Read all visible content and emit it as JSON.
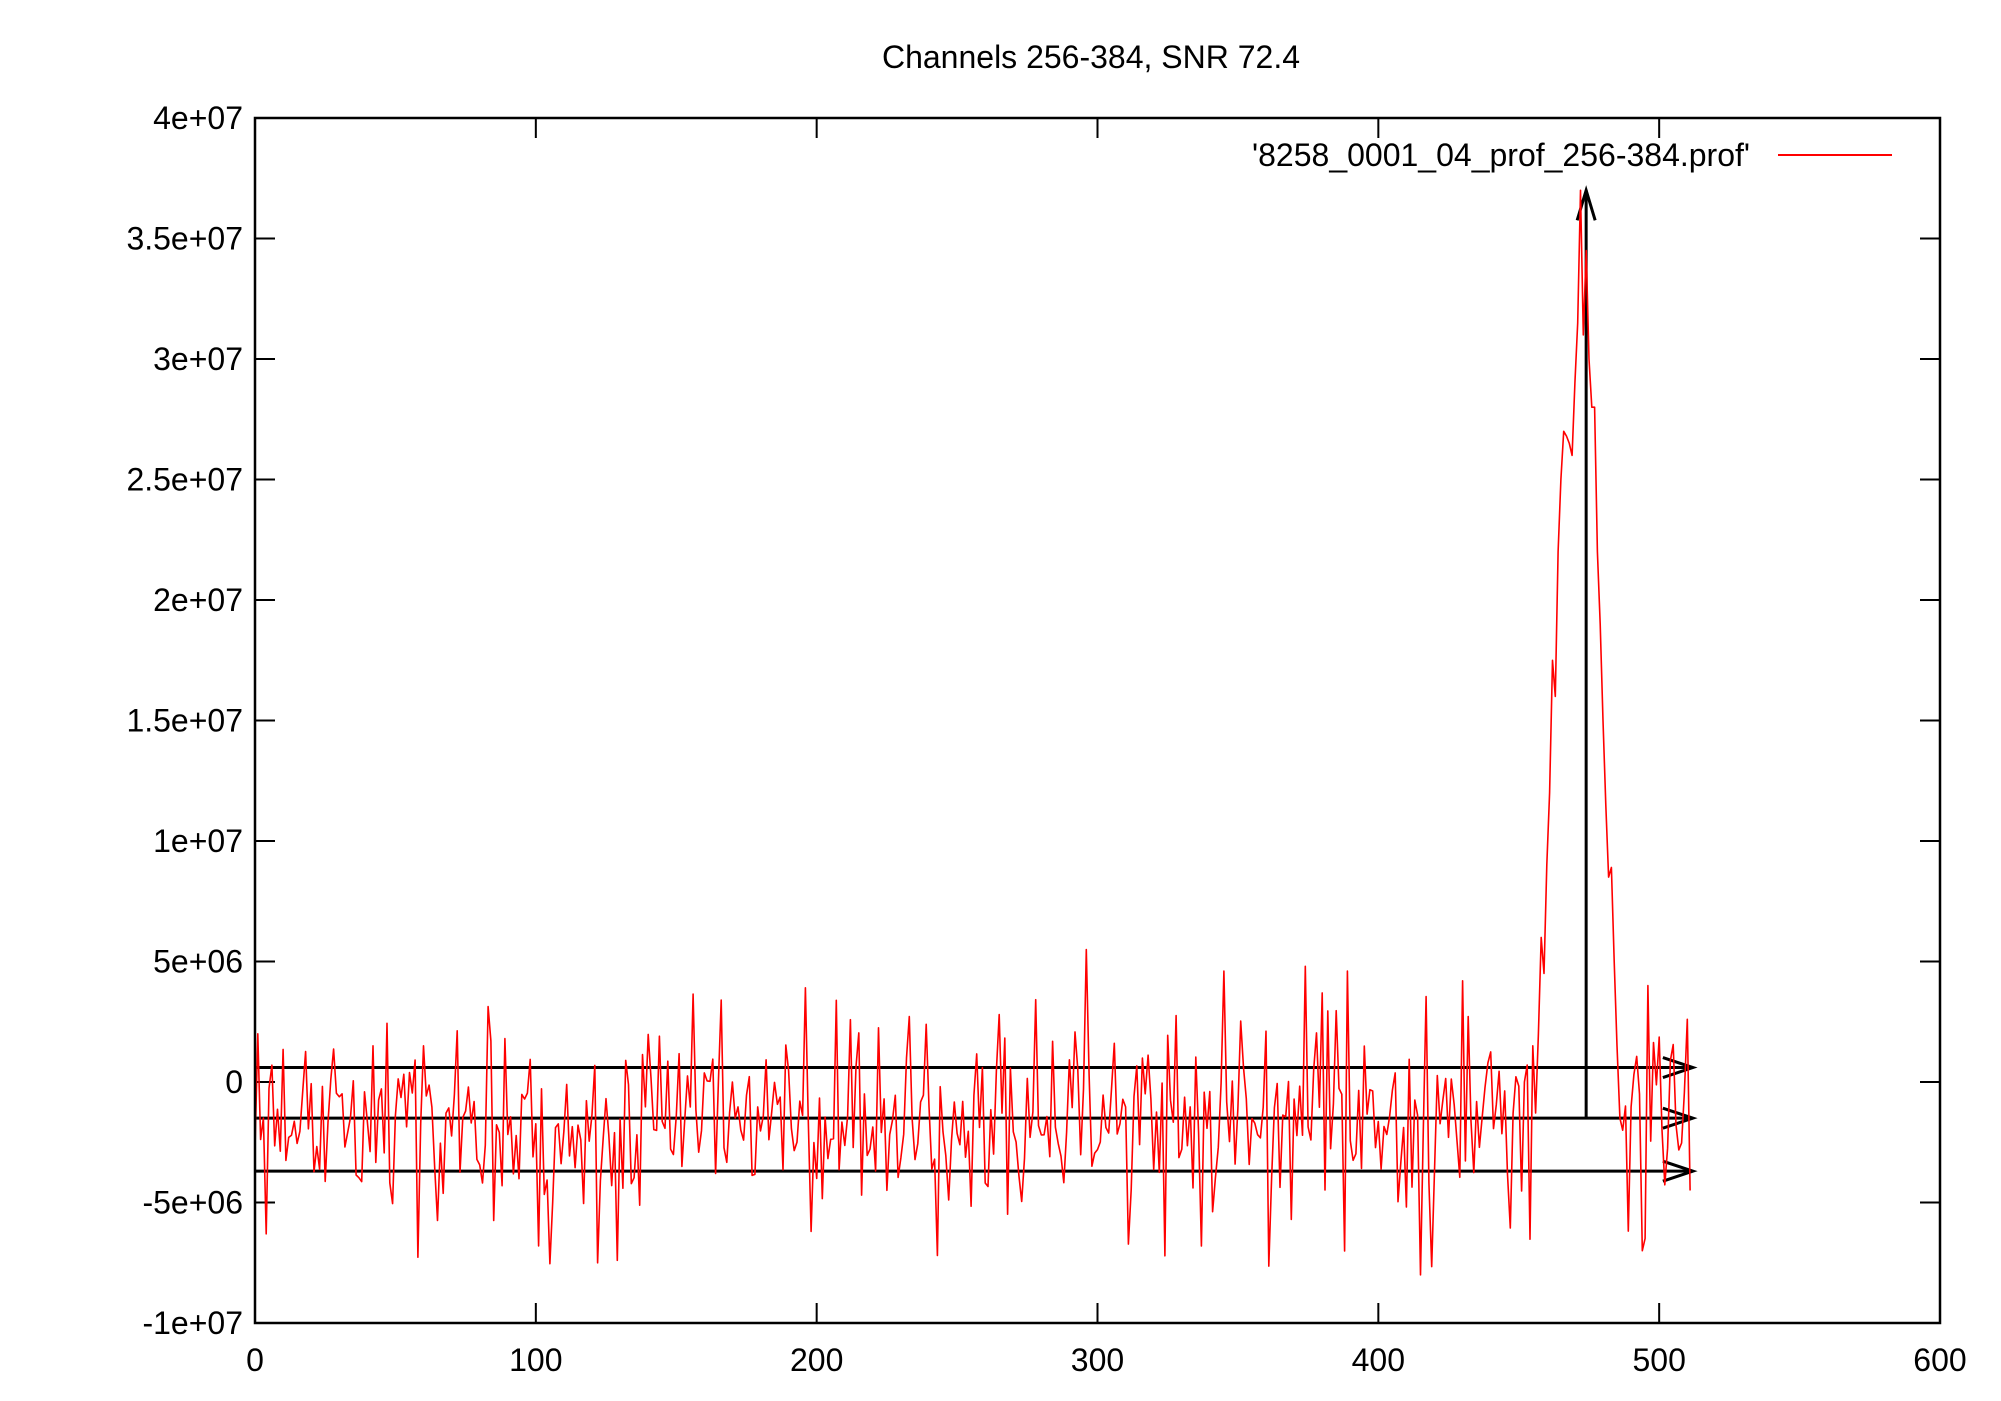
{
  "chart_data": {
    "type": "line",
    "title": "Channels 256-384, SNR 72.4",
    "xlabel": "",
    "ylabel": "",
    "xlim": [
      0,
      600
    ],
    "ylim": [
      -10000000,
      40000000
    ],
    "x_ticks": [
      0,
      100,
      200,
      300,
      400,
      500,
      600
    ],
    "x_tick_labels": [
      "0",
      "100",
      "200",
      "300",
      "400",
      "500",
      "600"
    ],
    "y_ticks": [
      -10000000,
      -5000000,
      0,
      5000000,
      10000000,
      15000000,
      20000000,
      25000000,
      30000000,
      35000000,
      40000000
    ],
    "y_tick_labels": [
      "-1e+07",
      "-5e+06",
      "0",
      "5e+06",
      "1e+07",
      "1.5e+07",
      "2e+07",
      "2.5e+07",
      "3e+07",
      "3.5e+07",
      "4e+07"
    ],
    "grid": false,
    "legend": "top-right",
    "series": [
      {
        "name": "'8258_0001_04_prof_256-384.prof'",
        "color": "#ff0000",
        "n_points": 512,
        "baseline_mean": -1500000,
        "noise_sigma": 2100000,
        "noise_min": -8200000,
        "noise_max": 5500000,
        "noise_seed": 8258,
        "pulse": [
          {
            "x": 452,
            "y": 0
          },
          {
            "x": 455,
            "y": 1500000
          },
          {
            "x": 457,
            "y": 2000000
          },
          {
            "x": 458,
            "y": 6000000
          },
          {
            "x": 459,
            "y": 4500000
          },
          {
            "x": 460,
            "y": 9000000
          },
          {
            "x": 461,
            "y": 12000000
          },
          {
            "x": 462,
            "y": 17500000
          },
          {
            "x": 463,
            "y": 16000000
          },
          {
            "x": 464,
            "y": 22000000
          },
          {
            "x": 465,
            "y": 25000000
          },
          {
            "x": 466,
            "y": 27000000
          },
          {
            "x": 467,
            "y": 26800000
          },
          {
            "x": 468,
            "y": 26500000
          },
          {
            "x": 469,
            "y": 26000000
          },
          {
            "x": 470,
            "y": 29000000
          },
          {
            "x": 471,
            "y": 31500000
          },
          {
            "x": 472,
            "y": 37000000
          },
          {
            "x": 473,
            "y": 31000000
          },
          {
            "x": 474,
            "y": 34500000
          },
          {
            "x": 475,
            "y": 30000000
          },
          {
            "x": 476,
            "y": 28000000
          },
          {
            "x": 477,
            "y": 28000000
          },
          {
            "x": 478,
            "y": 22000000
          },
          {
            "x": 479,
            "y": 19000000
          },
          {
            "x": 480,
            "y": 15000000
          },
          {
            "x": 481,
            "y": 11500000
          },
          {
            "x": 482,
            "y": 8500000
          },
          {
            "x": 483,
            "y": 8900000
          },
          {
            "x": 484,
            "y": 5000000
          },
          {
            "x": 485,
            "y": 1500000
          },
          {
            "x": 486,
            "y": -1500000
          },
          {
            "x": 487,
            "y": -2000000
          },
          {
            "x": 488,
            "y": -1000000
          }
        ],
        "noise_spikes": [
          {
            "x": 1,
            "y": 2000000
          },
          {
            "x": 4,
            "y": -6300000
          },
          {
            "x": 42,
            "y": 1500000
          },
          {
            "x": 89,
            "y": 1800000
          },
          {
            "x": 101,
            "y": -6800000
          },
          {
            "x": 122,
            "y": -7500000
          },
          {
            "x": 129,
            "y": -7400000
          },
          {
            "x": 144,
            "y": 1900000
          },
          {
            "x": 166,
            "y": 3400000
          },
          {
            "x": 198,
            "y": -6200000
          },
          {
            "x": 243,
            "y": -7200000
          },
          {
            "x": 265,
            "y": 2800000
          },
          {
            "x": 296,
            "y": 5500000
          },
          {
            "x": 345,
            "y": 4600000
          },
          {
            "x": 374,
            "y": 4800000
          },
          {
            "x": 389,
            "y": 4600000
          },
          {
            "x": 415,
            "y": -8000000
          },
          {
            "x": 430,
            "y": 4200000
          },
          {
            "x": 494,
            "y": -7000000
          },
          {
            "x": 496,
            "y": 4000000
          },
          {
            "x": 510,
            "y": 2600000
          },
          {
            "x": 511,
            "y": -4500000
          }
        ]
      }
    ],
    "annotations": {
      "hlines": [
        {
          "y": 600000,
          "x_from": 0,
          "x_to": 512,
          "arrow": true
        },
        {
          "y": -1500000,
          "x_from": 0,
          "x_to": 512,
          "arrow": true
        },
        {
          "y": -3700000,
          "x_from": 0,
          "x_to": 512,
          "arrow": true
        }
      ],
      "vline": {
        "x": 474,
        "y_from": -1500000,
        "y_to": 37000000,
        "arrow": true
      }
    }
  }
}
